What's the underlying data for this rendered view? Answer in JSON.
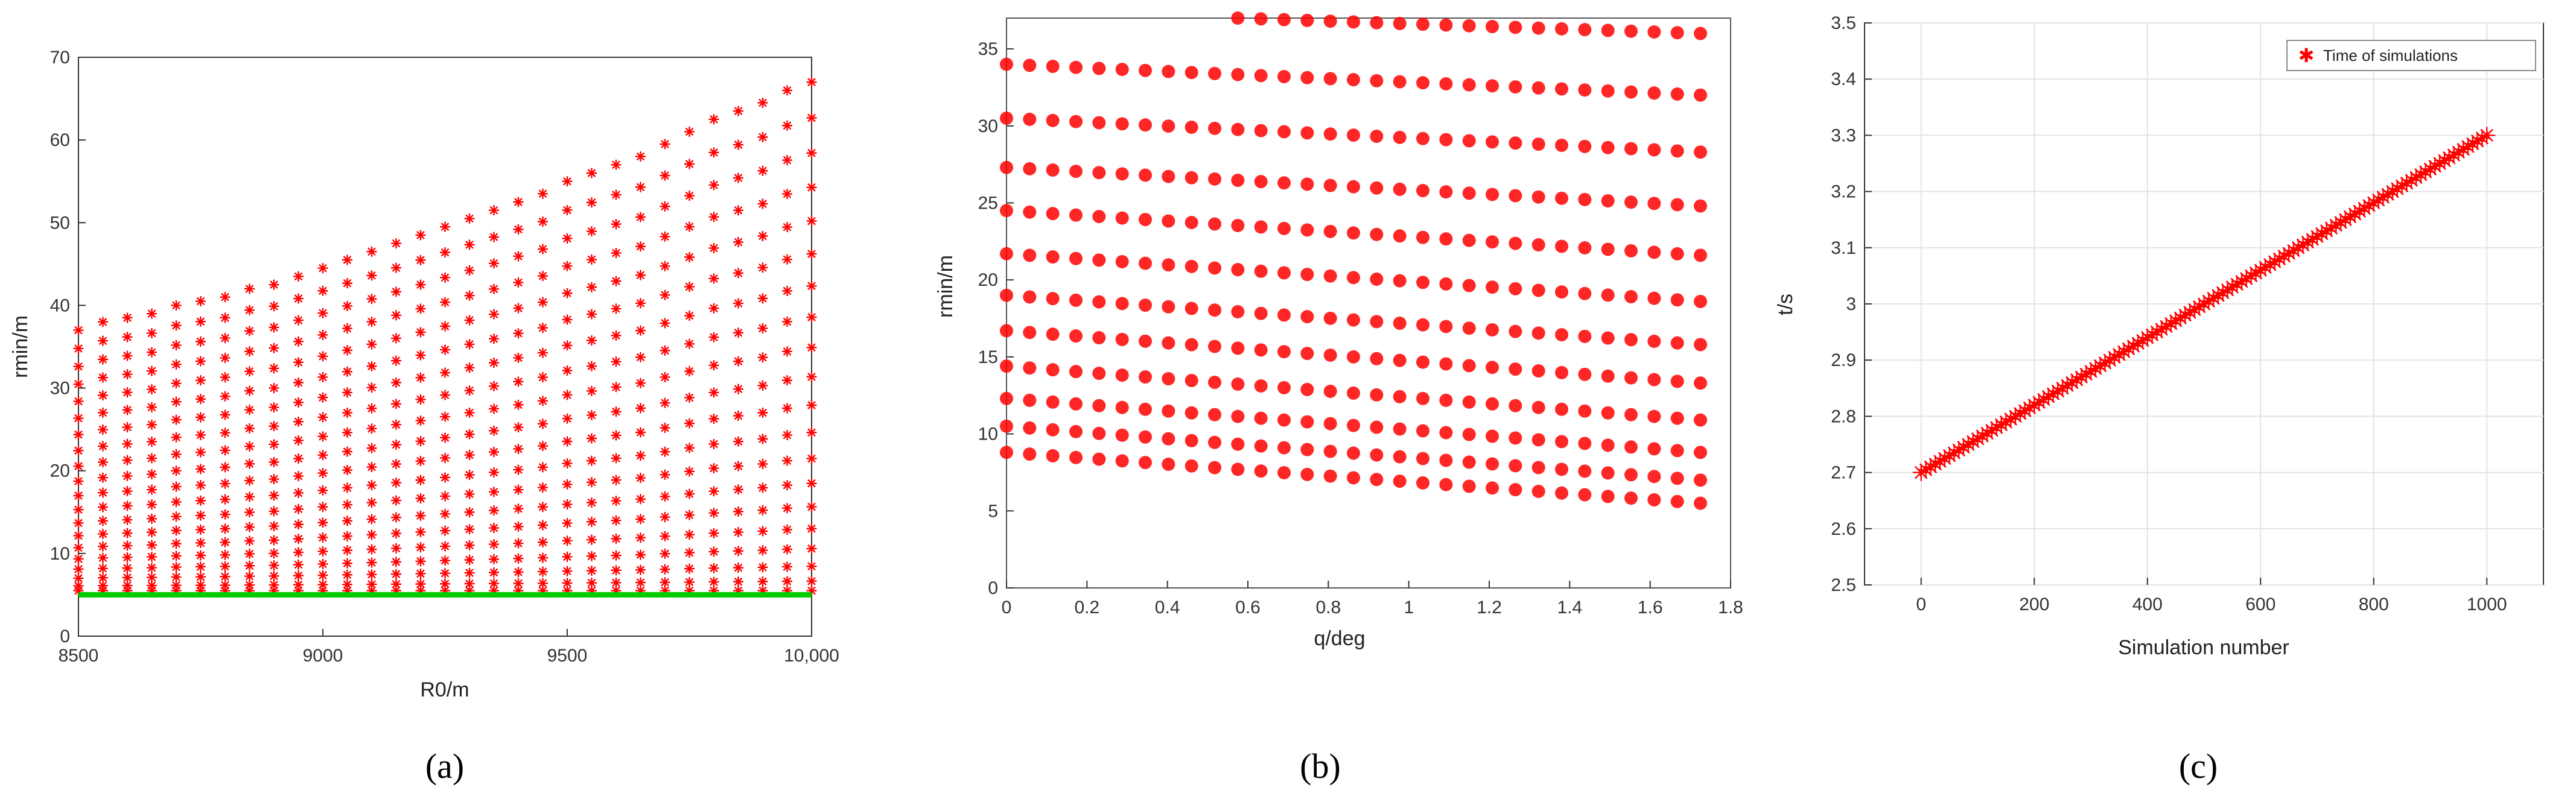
{
  "chart_data": [
    {
      "id": "a",
      "type": "scatter",
      "caption": "(a)",
      "xlabel": "R0/m",
      "ylabel": "rmin/m",
      "xlim": [
        8500,
        10000
      ],
      "ylim": [
        0,
        70
      ],
      "xticks": [
        8500,
        9000,
        9500,
        10000
      ],
      "xtick_labels": [
        "8500",
        "9000",
        "9500",
        "10,000"
      ],
      "yticks": [
        0,
        10,
        20,
        30,
        40,
        50,
        60,
        70
      ],
      "grid": false,
      "marker": "asterisk",
      "colors": {
        "points": "#ff0000",
        "baseline": "#00cc00"
      },
      "x": [
        8500,
        8550,
        8600,
        8650,
        8700,
        8750,
        8800,
        8850,
        8900,
        8950,
        9000,
        9050,
        9100,
        9150,
        9200,
        9250,
        9300,
        9350,
        9400,
        9450,
        9500,
        9550,
        9600,
        9650,
        9700,
        9750,
        9800,
        9850,
        9900,
        9950,
        10000
      ],
      "rows": 20,
      "y_min_line": 5.5,
      "y_max_curve": [
        37,
        38,
        38.5,
        39,
        40,
        40.5,
        41,
        42,
        42.5,
        43.5,
        44.5,
        45.5,
        46.5,
        47.5,
        48.5,
        49.5,
        50.5,
        51.5,
        52.5,
        53.5,
        55,
        56,
        57,
        58,
        59.5,
        61,
        62.5,
        63.5,
        64.5,
        66,
        67
      ],
      "baseline_y": 5
    },
    {
      "id": "b",
      "type": "scatter",
      "caption": "(b)",
      "xlabel": "q/deg",
      "ylabel": "rmin/m",
      "xlim": [
        0,
        1.8
      ],
      "ylim": [
        0,
        37
      ],
      "xticks": [
        0,
        0.2,
        0.4,
        0.6,
        0.8,
        1,
        1.2,
        1.4,
        1.6,
        1.8
      ],
      "yticks": [
        0,
        5,
        10,
        15,
        20,
        25,
        30,
        35
      ],
      "grid": false,
      "marker": "dot",
      "colors": {
        "points": "#ff0000"
      },
      "x": [
        0,
        0.0575,
        0.115,
        0.1725,
        0.23,
        0.2875,
        0.345,
        0.4025,
        0.46,
        0.5175,
        0.575,
        0.6325,
        0.69,
        0.7475,
        0.805,
        0.8625,
        0.92,
        0.9775,
        1.035,
        1.0925,
        1.15,
        1.2075,
        1.265,
        1.3225,
        1.38,
        1.4375,
        1.495,
        1.5525,
        1.61,
        1.6675,
        1.725
      ],
      "series": [
        {
          "start": 37.5,
          "end": 36.0
        },
        {
          "start": 34.0,
          "end": 32.0
        },
        {
          "start": 30.5,
          "end": 28.3
        },
        {
          "start": 27.3,
          "end": 24.8
        },
        {
          "start": 24.5,
          "end": 21.6
        },
        {
          "start": 21.7,
          "end": 18.6
        },
        {
          "start": 19.0,
          "end": 15.8
        },
        {
          "start": 16.7,
          "end": 13.3
        },
        {
          "start": 14.4,
          "end": 10.9
        },
        {
          "start": 12.3,
          "end": 8.8
        },
        {
          "start": 10.5,
          "end": 7.0
        },
        {
          "start": 8.8,
          "end": 5.5
        }
      ]
    },
    {
      "id": "c",
      "type": "line",
      "caption": "(c)",
      "xlabel": "Simulation number",
      "ylabel": "t/s",
      "xlim": [
        -100,
        1100
      ],
      "ylim": [
        2.5,
        3.5
      ],
      "xticks": [
        0,
        200,
        400,
        600,
        800,
        1000
      ],
      "yticks": [
        2.5,
        2.6,
        2.7,
        2.8,
        2.9,
        3,
        3.1,
        3.2,
        3.3,
        3.4,
        3.5
      ],
      "ytick_labels": [
        "2.5",
        "2.6",
        "2.7",
        "2.8",
        "2.9",
        "3",
        "3.1",
        "3.2",
        "3.3",
        "3.4",
        "3.5"
      ],
      "grid": true,
      "legend_position": "top-right",
      "series": [
        {
          "name": "Time of simulations",
          "x": [
            0,
            1000
          ],
          "y": [
            2.7,
            3.3
          ],
          "color": "#ff0000",
          "marker": "asterisk"
        }
      ]
    }
  ]
}
